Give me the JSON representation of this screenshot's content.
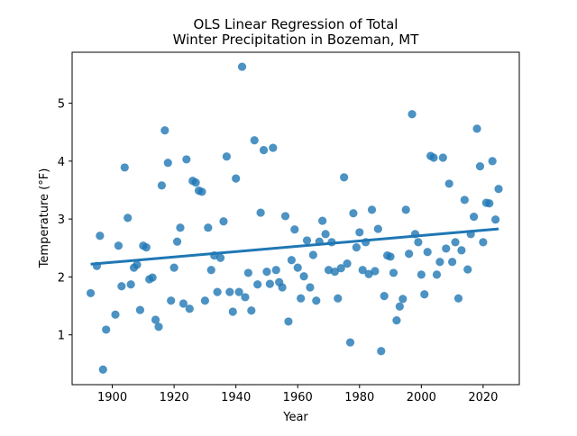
{
  "chart_data": {
    "type": "scatter",
    "title_lines": [
      "OLS Linear Regression of Total",
      "Winter Precipitation in Bozeman, MT"
    ],
    "xlabel": "Year",
    "ylabel": "Temperature (°F)",
    "xlim": [
      1887,
      2031.7
    ],
    "ylim": [
      0.14,
      5.88
    ],
    "xticks": [
      1900,
      1920,
      1940,
      1960,
      1980,
      2000,
      2020
    ],
    "yticks": [
      1,
      2,
      3,
      4,
      5
    ],
    "grid": false,
    "point_color": "#1f77b4",
    "line_color": "#1f77b4",
    "regression_line": {
      "x": [
        1893,
        2025
      ],
      "y": [
        2.22,
        2.83
      ]
    },
    "points": [
      [
        1893,
        1.72
      ],
      [
        1895,
        2.19
      ],
      [
        1896,
        2.71
      ],
      [
        1897,
        0.4
      ],
      [
        1898,
        1.09
      ],
      [
        1901,
        1.35
      ],
      [
        1902,
        2.54
      ],
      [
        1903,
        1.84
      ],
      [
        1904,
        3.89
      ],
      [
        1905,
        3.02
      ],
      [
        1906,
        1.87
      ],
      [
        1907,
        2.16
      ],
      [
        1908,
        2.21
      ],
      [
        1909,
        1.43
      ],
      [
        1910,
        2.54
      ],
      [
        1911,
        2.51
      ],
      [
        1912,
        1.96
      ],
      [
        1913,
        1.99
      ],
      [
        1914,
        1.26
      ],
      [
        1915,
        1.14
      ],
      [
        1916,
        3.58
      ],
      [
        1917,
        4.53
      ],
      [
        1918,
        3.97
      ],
      [
        1919,
        1.59
      ],
      [
        1920,
        2.16
      ],
      [
        1921,
        2.61
      ],
      [
        1922,
        2.85
      ],
      [
        1923,
        1.54
      ],
      [
        1924,
        4.03
      ],
      [
        1925,
        1.45
      ],
      [
        1926,
        3.66
      ],
      [
        1927,
        3.63
      ],
      [
        1928,
        3.49
      ],
      [
        1929,
        3.47
      ],
      [
        1930,
        1.59
      ],
      [
        1931,
        2.85
      ],
      [
        1932,
        2.12
      ],
      [
        1933,
        2.37
      ],
      [
        1934,
        1.74
      ],
      [
        1935,
        2.33
      ],
      [
        1936,
        2.96
      ],
      [
        1937,
        4.08
      ],
      [
        1938,
        1.74
      ],
      [
        1939,
        1.4
      ],
      [
        1940,
        3.7
      ],
      [
        1941,
        1.74
      ],
      [
        1942,
        5.63
      ],
      [
        1943,
        1.65
      ],
      [
        1944,
        2.07
      ],
      [
        1945,
        1.42
      ],
      [
        1946,
        4.36
      ],
      [
        1947,
        1.87
      ],
      [
        1948,
        3.11
      ],
      [
        1949,
        4.19
      ],
      [
        1950,
        2.09
      ],
      [
        1951,
        1.88
      ],
      [
        1952,
        4.23
      ],
      [
        1953,
        2.12
      ],
      [
        1954,
        1.91
      ],
      [
        1955,
        1.82
      ],
      [
        1956,
        3.05
      ],
      [
        1957,
        1.23
      ],
      [
        1958,
        2.29
      ],
      [
        1959,
        2.82
      ],
      [
        1960,
        2.16
      ],
      [
        1961,
        1.63
      ],
      [
        1962,
        2.01
      ],
      [
        1963,
        2.63
      ],
      [
        1964,
        1.82
      ],
      [
        1965,
        2.38
      ],
      [
        1966,
        1.59
      ],
      [
        1967,
        2.61
      ],
      [
        1968,
        2.97
      ],
      [
        1969,
        2.74
      ],
      [
        1970,
        2.12
      ],
      [
        1971,
        2.6
      ],
      [
        1972,
        2.09
      ],
      [
        1973,
        1.63
      ],
      [
        1974,
        2.15
      ],
      [
        1975,
        3.72
      ],
      [
        1976,
        2.23
      ],
      [
        1977,
        0.87
      ],
      [
        1978,
        3.1
      ],
      [
        1979,
        2.51
      ],
      [
        1980,
        2.77
      ],
      [
        1981,
        2.12
      ],
      [
        1982,
        2.6
      ],
      [
        1983,
        2.05
      ],
      [
        1984,
        3.16
      ],
      [
        1985,
        2.1
      ],
      [
        1986,
        2.83
      ],
      [
        1987,
        0.72
      ],
      [
        1988,
        1.67
      ],
      [
        1989,
        2.37
      ],
      [
        1990,
        2.35
      ],
      [
        1991,
        2.07
      ],
      [
        1992,
        1.25
      ],
      [
        1993,
        1.49
      ],
      [
        1994,
        1.62
      ],
      [
        1995,
        3.16
      ],
      [
        1996,
        2.4
      ],
      [
        1997,
        4.81
      ],
      [
        1998,
        2.74
      ],
      [
        1999,
        2.6
      ],
      [
        2000,
        2.04
      ],
      [
        2001,
        1.7
      ],
      [
        2002,
        2.43
      ],
      [
        2003,
        4.09
      ],
      [
        2004,
        4.06
      ],
      [
        2005,
        2.04
      ],
      [
        2006,
        2.26
      ],
      [
        2007,
        4.06
      ],
      [
        2008,
        2.49
      ],
      [
        2009,
        3.61
      ],
      [
        2010,
        2.26
      ],
      [
        2011,
        2.6
      ],
      [
        2012,
        1.63
      ],
      [
        2013,
        2.46
      ],
      [
        2014,
        3.33
      ],
      [
        2015,
        2.13
      ],
      [
        2016,
        2.74
      ],
      [
        2017,
        3.04
      ],
      [
        2018,
        4.56
      ],
      [
        2019,
        3.91
      ],
      [
        2020,
        2.6
      ],
      [
        2021,
        3.28
      ],
      [
        2022,
        3.27
      ],
      [
        2023,
        4.0
      ],
      [
        2024,
        2.99
      ],
      [
        2025,
        3.52
      ]
    ]
  }
}
